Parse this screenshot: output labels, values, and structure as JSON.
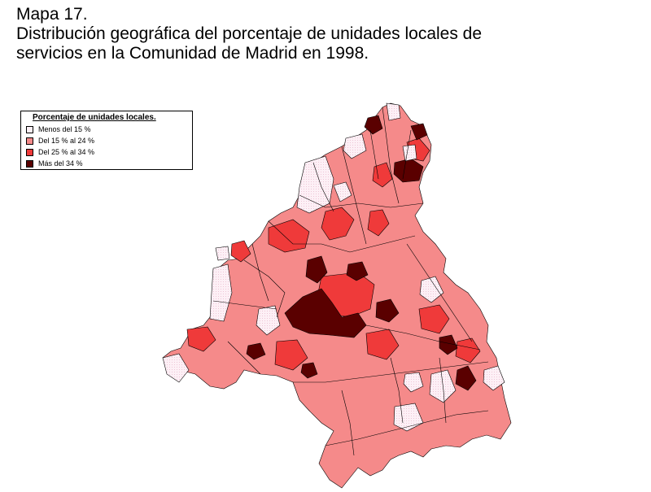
{
  "title": {
    "line1": "Mapa 17.",
    "line2": "Distribución geográfica del porcentaje de unidades locales de",
    "line3": "servicios en la Comunidad de Madrid en 1998."
  },
  "legend": {
    "title": "Porcentaje de unidades locales.",
    "items": [
      {
        "label": "Menos del 15 %",
        "color": "#fdf0f6"
      },
      {
        "label": "Del 15 % al 24 %",
        "color": "#f58a8a"
      },
      {
        "label": "Del 25 % al 34 %",
        "color": "#ef3a3a"
      },
      {
        "label": "Más del 34 %",
        "color": "#5a0000"
      }
    ]
  },
  "map": {
    "region": "Comunidad de Madrid",
    "palette": {
      "low": "#fdf0f6",
      "midlow": "#f58a8a",
      "midhigh": "#ef3a3a",
      "high": "#5a0000"
    }
  }
}
